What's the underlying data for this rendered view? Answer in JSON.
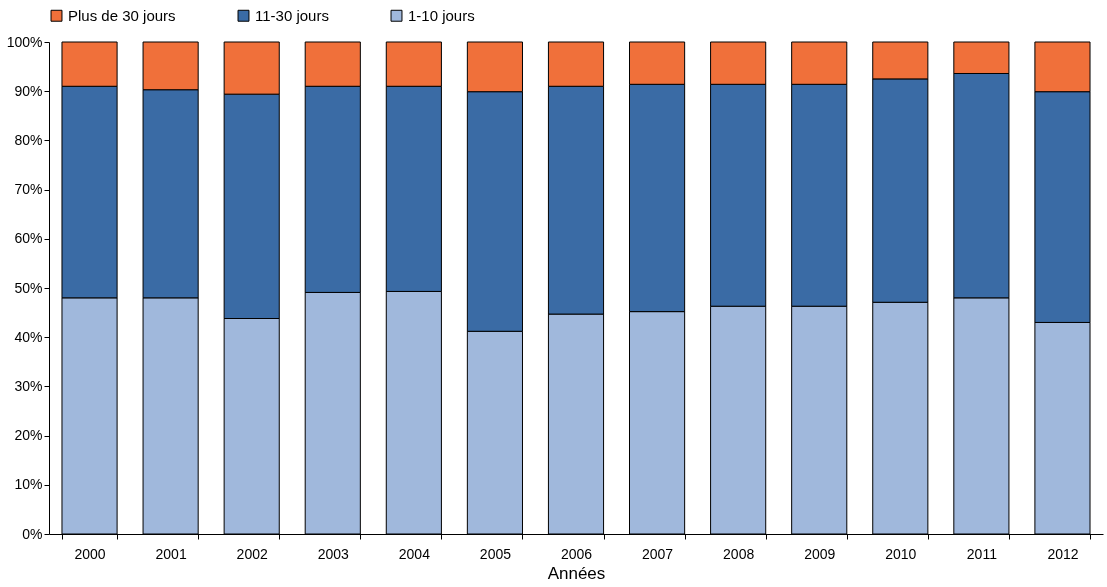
{
  "chart_data": {
    "type": "bar",
    "stacked": true,
    "xlabel": "Années",
    "categories": [
      "2000",
      "2001",
      "2002",
      "2003",
      "2004",
      "2005",
      "2006",
      "2007",
      "2008",
      "2009",
      "2010",
      "2011",
      "2012"
    ],
    "series": [
      {
        "name": "1-10 jours",
        "color": "#a0b8dc",
        "values": [
          48,
          48,
          43.8,
          49.1,
          49.3,
          41.2,
          44.7,
          45.2,
          46.3,
          46.3,
          47.1,
          48,
          43
        ]
      },
      {
        "name": "11-30 jours",
        "color": "#3a6ba5",
        "values": [
          43,
          42.3,
          45.6,
          41.9,
          41.7,
          48.7,
          46.3,
          46.2,
          45.1,
          45.1,
          45.4,
          45.6,
          46.9
        ]
      },
      {
        "name": "Plus de 30 jours",
        "color": "#f0703a",
        "values": [
          9,
          9.7,
          10.6,
          9,
          9,
          10.1,
          9,
          8.6,
          8.6,
          8.6,
          7.5,
          6.4,
          10.1
        ]
      }
    ],
    "ylim": [
      0,
      100
    ],
    "yticks": [
      {
        "value": 0,
        "label": "0%"
      },
      {
        "value": 10,
        "label": "10%"
      },
      {
        "value": 20,
        "label": "20%"
      },
      {
        "value": 30,
        "label": "30%"
      },
      {
        "value": 40,
        "label": "40%"
      },
      {
        "value": 50,
        "label": "50%"
      },
      {
        "value": 60,
        "label": "60%"
      },
      {
        "value": 70,
        "label": "70%"
      },
      {
        "value": 80,
        "label": "80%"
      },
      {
        "value": 90,
        "label": "90%"
      },
      {
        "value": 100,
        "label": "100%"
      }
    ],
    "grid": false,
    "legend": "top"
  }
}
